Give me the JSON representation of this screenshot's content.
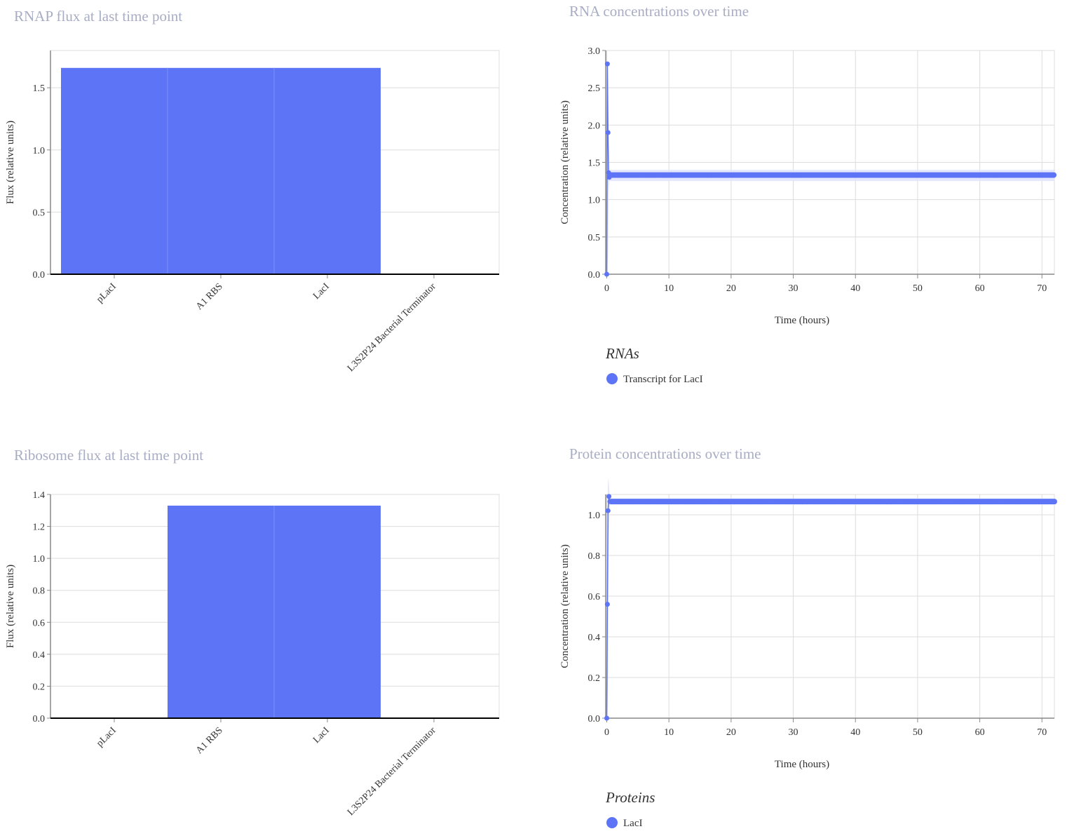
{
  "colors": {
    "bar": "#5c74f5",
    "series": "#5c74f5",
    "band": "#dfe3fd",
    "grid": "#dddddd",
    "axis": "#888888",
    "baseline": "#000000",
    "title": "#a8adc4"
  },
  "panels": {
    "rnap": {
      "title": "RNAP flux at last time point"
    },
    "rna": {
      "title": "RNA concentrations over time"
    },
    "ribosome": {
      "title": "Ribosome flux at last time point"
    },
    "protein": {
      "title": "Protein concentrations over time"
    }
  },
  "chart_data": [
    {
      "id": "rnap",
      "type": "bar",
      "title": "RNAP flux at last time point",
      "xlabel": "",
      "ylabel": "Flux (relative units)",
      "categories": [
        "pLacI",
        "A1 RBS",
        "LacI",
        "L3S2P24 Bacterial Terminator"
      ],
      "values": [
        1.66,
        1.66,
        1.66,
        0
      ],
      "ylim": [
        0,
        1.8
      ],
      "yticks": [
        0,
        0.5,
        1,
        1.5
      ],
      "ytick_labels": [
        "0.0",
        "0.5",
        "1.0",
        "1.5"
      ],
      "grid": true
    },
    {
      "id": "rna",
      "type": "line",
      "title": "RNA concentrations over time",
      "xlabel": "Time (hours)",
      "ylabel": "Concentration (relative units)",
      "xlim": [
        0,
        72
      ],
      "ylim": [
        0,
        3
      ],
      "xticks": [
        0,
        10,
        20,
        30,
        40,
        50,
        60,
        70
      ],
      "xtick_labels": [
        "0",
        "10",
        "20",
        "30",
        "40",
        "50",
        "60",
        "70"
      ],
      "yticks": [
        0,
        0.5,
        1,
        1.5,
        2,
        2.5,
        3
      ],
      "ytick_labels": [
        "0.0",
        "0.5",
        "1.0",
        "1.5",
        "2.0",
        "2.5",
        "3.0"
      ],
      "grid": true,
      "legend_title": "RNAs",
      "legend_position": "bottom-left",
      "series": [
        {
          "name": "Transcript for LacI",
          "x": [
            0,
            0.1,
            0.2,
            0.3,
            0.4
          ],
          "y": [
            0,
            2.82,
            1.9,
            1.36,
            1.3
          ],
          "steady_value": 1.33,
          "band_upper": [
            0,
            3.0,
            2.3,
            1.5,
            1.4
          ],
          "band_lower": [
            0,
            0.0,
            0.3,
            1.1,
            1.25
          ]
        }
      ]
    },
    {
      "id": "ribosome",
      "type": "bar",
      "title": "Ribosome flux at last time point",
      "xlabel": "",
      "ylabel": "Flux (relative units)",
      "categories": [
        "pLacI",
        "A1 RBS",
        "LacI",
        "L3S2P24 Bacterial Terminator"
      ],
      "values": [
        0,
        1.33,
        1.33,
        0
      ],
      "ylim": [
        0,
        1.4
      ],
      "yticks": [
        0,
        0.2,
        0.4,
        0.6,
        0.8,
        1.0,
        1.2,
        1.4
      ],
      "ytick_labels": [
        "0.0",
        "0.2",
        "0.4",
        "0.6",
        "0.8",
        "1.0",
        "1.2",
        "1.4"
      ],
      "grid": true
    },
    {
      "id": "protein",
      "type": "line",
      "title": "Protein concentrations over time",
      "xlabel": "Time (hours)",
      "ylabel": "Concentration (relative units)",
      "xlim": [
        0,
        72
      ],
      "ylim": [
        0,
        1.1
      ],
      "xticks": [
        0,
        10,
        20,
        30,
        40,
        50,
        60,
        70
      ],
      "xtick_labels": [
        "0",
        "10",
        "20",
        "30",
        "40",
        "50",
        "60",
        "70"
      ],
      "yticks": [
        0,
        0.2,
        0.4,
        0.6,
        0.8,
        1.0
      ],
      "ytick_labels": [
        "0.0",
        "0.2",
        "0.4",
        "0.6",
        "0.8",
        "1.0"
      ],
      "grid": true,
      "legend_title": "Proteins",
      "legend_position": "bottom-left",
      "series": [
        {
          "name": "LacI",
          "x": [
            0,
            0.1,
            0.2,
            0.35,
            0.5
          ],
          "y": [
            0,
            0.56,
            1.02,
            1.09,
            1.065
          ],
          "steady_value": 1.065,
          "band_upper": [
            0,
            1.0,
            1.18,
            1.15,
            1.08
          ],
          "band_lower": [
            0,
            0.0,
            0.2,
            0.9,
            1.05
          ]
        }
      ]
    }
  ]
}
